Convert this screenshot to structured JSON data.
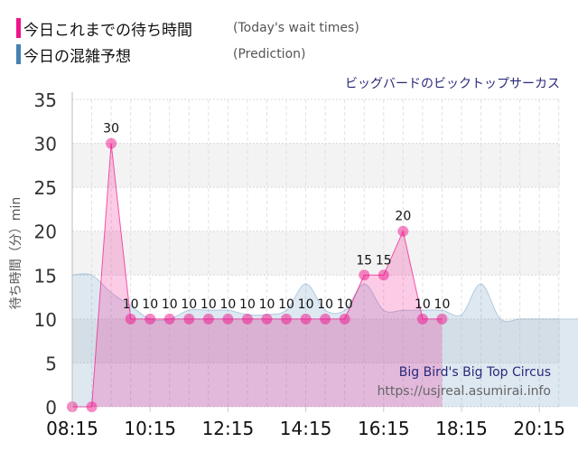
{
  "legend": [
    {
      "label_jp": "今日これまでの待ち時間",
      "label_en": "(Today's wait times)",
      "color": "#f0148c"
    },
    {
      "label_jp": "今日の混雑予想",
      "label_en": "(Prediction)",
      "color": "#4682b4"
    }
  ],
  "attraction_jp": "ビッグバードのビックトップサーカス",
  "watermark": {
    "title": "Big Bird's Big Top Circus",
    "url": "https://usjreal.asumirai.info"
  },
  "chart_data": {
    "type": "area",
    "title": "ビッグバードのビックトップサーカス",
    "xlabel": "",
    "ylabel": "待ち時間（分）min",
    "ylim": [
      0,
      35
    ],
    "yticks": [
      0,
      5,
      10,
      15,
      20,
      25,
      30,
      35
    ],
    "xticks": [
      "08:15",
      "10:15",
      "12:15",
      "14:15",
      "16:15",
      "18:15",
      "20:15"
    ],
    "grid": true,
    "series": [
      {
        "name": "今日これまでの待ち時間 (Today's wait times)",
        "color": "#f0148c",
        "x": [
          "08:15",
          "08:45",
          "09:15",
          "09:45",
          "10:15",
          "10:45",
          "11:15",
          "11:45",
          "12:15",
          "12:45",
          "13:15",
          "13:45",
          "14:15",
          "14:45",
          "15:15",
          "15:45",
          "16:15",
          "16:45",
          "17:15",
          "17:45"
        ],
        "values": [
          0,
          0,
          30,
          10,
          10,
          10,
          10,
          10,
          10,
          10,
          10,
          10,
          10,
          10,
          10,
          15,
          15,
          20,
          10,
          10
        ],
        "data_labels": [
          null,
          null,
          "30",
          "10",
          "10",
          "10",
          "10",
          "10",
          "10",
          "10",
          "10",
          "10",
          "10",
          "10",
          "10",
          "15",
          "15",
          "20",
          "10",
          "10"
        ]
      },
      {
        "name": "今日の混雑予想 (Prediction)",
        "color": "#4682b4",
        "x": [
          "08:15",
          "08:45",
          "09:15",
          "09:45",
          "10:15",
          "10:45",
          "11:15",
          "11:45",
          "12:15",
          "12:45",
          "13:15",
          "13:45",
          "14:15",
          "14:45",
          "15:15",
          "15:45",
          "16:15",
          "16:45",
          "17:15",
          "17:45",
          "18:15",
          "18:45",
          "19:15",
          "19:45",
          "20:15",
          "20:45",
          "21:15"
        ],
        "values": [
          15,
          15,
          13,
          11.5,
          10,
          10,
          11,
          11,
          11,
          10.5,
          10.5,
          11,
          14,
          11,
          11,
          14,
          11,
          11,
          11,
          11,
          10.5,
          14,
          10,
          10,
          10,
          10,
          10
        ]
      }
    ]
  }
}
